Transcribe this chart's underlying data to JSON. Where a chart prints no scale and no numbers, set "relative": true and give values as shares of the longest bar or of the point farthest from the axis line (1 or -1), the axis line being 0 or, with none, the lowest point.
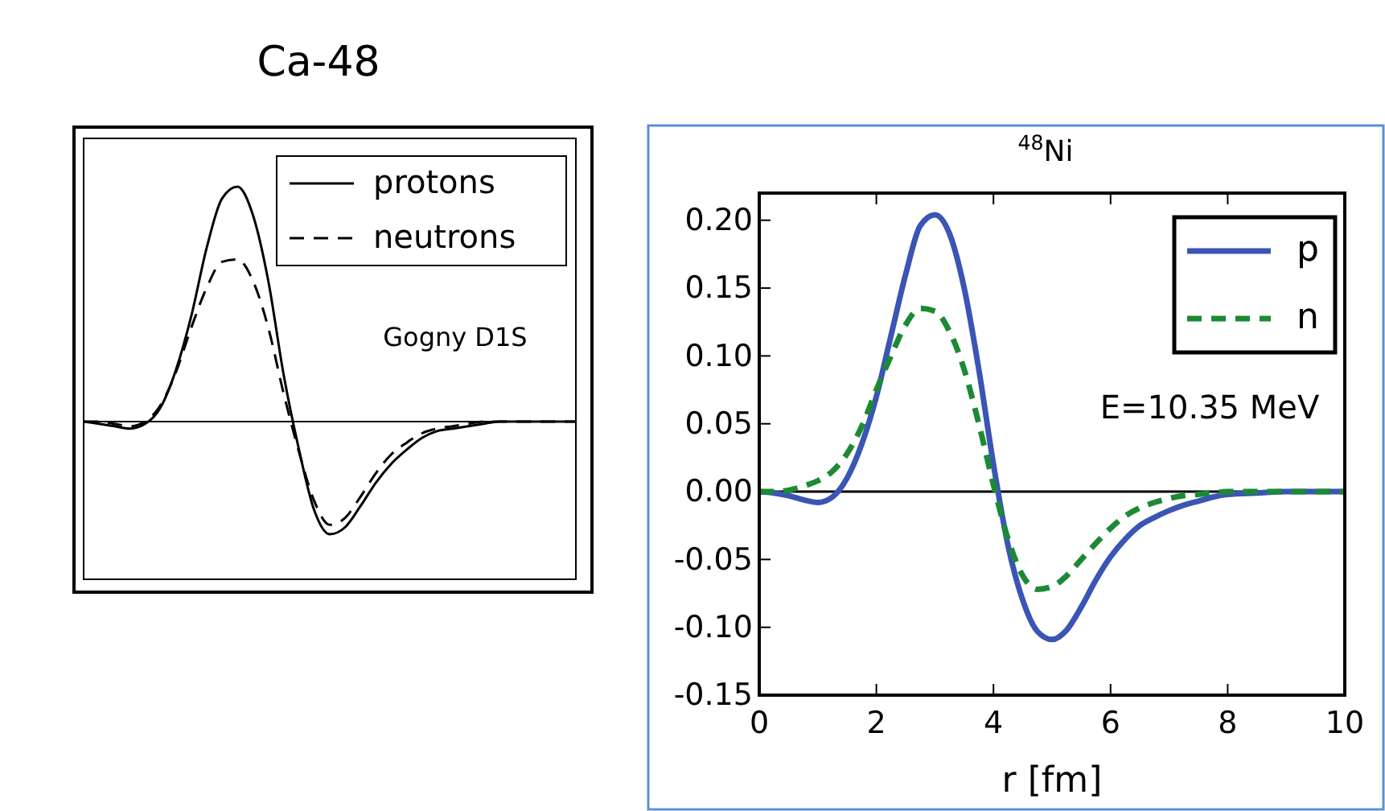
{
  "chart_data": [
    {
      "type": "line",
      "title": "Ca-48",
      "relative": true,
      "legend": "top right",
      "annotations": [
        "Gogny D1S"
      ],
      "categories": [
        null,
        null,
        null,
        null,
        null,
        null,
        null,
        null,
        null,
        null,
        null,
        null,
        null,
        null,
        null,
        null,
        null,
        null,
        null,
        null,
        null,
        null,
        null,
        null,
        null,
        null,
        null,
        null,
        null,
        null,
        null,
        null,
        null
      ],
      "series": [
        {
          "name": "protons",
          "color": "#000000",
          "line_style": "solid",
          "values": [
            0,
            -0.01,
            -0.02,
            -0.03,
            -0.01,
            0.06,
            0.22,
            0.45,
            0.74,
            0.95,
            1,
            0.88,
            0.6,
            0.2,
            -0.12,
            -0.38,
            -0.48,
            -0.45,
            -0.36,
            -0.26,
            -0.18,
            -0.12,
            -0.07,
            -0.04,
            -0.03,
            -0.02,
            -0.01,
            0,
            0,
            0,
            0,
            0,
            0
          ]
        },
        {
          "name": "neutrons",
          "color": "#000000",
          "line_style": "dashed",
          "values": [
            0,
            0,
            -0.01,
            -0.02,
            0,
            0.07,
            0.21,
            0.4,
            0.57,
            0.68,
            0.69,
            0.6,
            0.4,
            0.12,
            -0.13,
            -0.34,
            -0.44,
            -0.41,
            -0.32,
            -0.22,
            -0.14,
            -0.09,
            -0.05,
            -0.03,
            -0.02,
            -0.01,
            0,
            0,
            0,
            0,
            0,
            0,
            0
          ]
        }
      ]
    },
    {
      "type": "line",
      "title": "$^{48}$Ni",
      "xlabel": "r [fm]",
      "legend": "top right",
      "annotations": [
        "E=10.35 MeV"
      ],
      "xlim": [
        0,
        10
      ],
      "xticks": [
        0,
        2,
        4,
        6,
        8,
        10
      ],
      "ylim": [
        -0.15,
        0.22
      ],
      "yticks": [
        {
          "value": -0.15,
          "label": "-0.15"
        },
        {
          "value": -0.1,
          "label": "-0.10"
        },
        {
          "value": -0.05,
          "label": "-0.05"
        },
        {
          "value": 0,
          "label": "0.00"
        },
        {
          "value": 0.05,
          "label": "0.05"
        },
        {
          "value": 0.1,
          "label": "0.10"
        },
        {
          "value": 0.15,
          "label": "0.15"
        },
        {
          "value": 0.2,
          "label": "0.20"
        }
      ],
      "ref_lines": [
        {
          "axis": "y",
          "value": 0,
          "color": "#000000"
        }
      ],
      "x": [
        0,
        0.25,
        0.5,
        0.75,
        1,
        1.25,
        1.5,
        1.75,
        2,
        2.25,
        2.5,
        2.75,
        3,
        3.25,
        3.5,
        3.75,
        4,
        4.25,
        4.5,
        4.75,
        5,
        5.25,
        5.5,
        5.75,
        6,
        6.25,
        6.5,
        6.75,
        7,
        7.25,
        7.5,
        7.75,
        8,
        8.5,
        9,
        9.5,
        10
      ],
      "series": [
        {
          "name": "p",
          "color": "#3a55b4",
          "line_style": "solid",
          "values": [
            0,
            -0.001,
            -0.003,
            -0.006,
            -0.008,
            -0.004,
            0.01,
            0.035,
            0.07,
            0.115,
            0.16,
            0.196,
            0.204,
            0.19,
            0.15,
            0.09,
            0.02,
            -0.04,
            -0.08,
            -0.103,
            -0.109,
            -0.102,
            -0.085,
            -0.065,
            -0.048,
            -0.035,
            -0.025,
            -0.019,
            -0.014,
            -0.01,
            -0.007,
            -0.004,
            -0.002,
            -0.001,
            0,
            0,
            0
          ]
        },
        {
          "name": "n",
          "color": "#1c8a34",
          "line_style": "dashed",
          "values": [
            0,
            0,
            0.001,
            0.004,
            0.008,
            0.015,
            0.028,
            0.048,
            0.075,
            0.1,
            0.123,
            0.135,
            0.133,
            0.118,
            0.09,
            0.05,
            0.005,
            -0.035,
            -0.062,
            -0.072,
            -0.07,
            -0.062,
            -0.05,
            -0.038,
            -0.027,
            -0.018,
            -0.012,
            -0.008,
            -0.005,
            -0.003,
            -0.002,
            -0.001,
            0,
            0,
            0,
            0,
            0
          ]
        }
      ]
    }
  ]
}
